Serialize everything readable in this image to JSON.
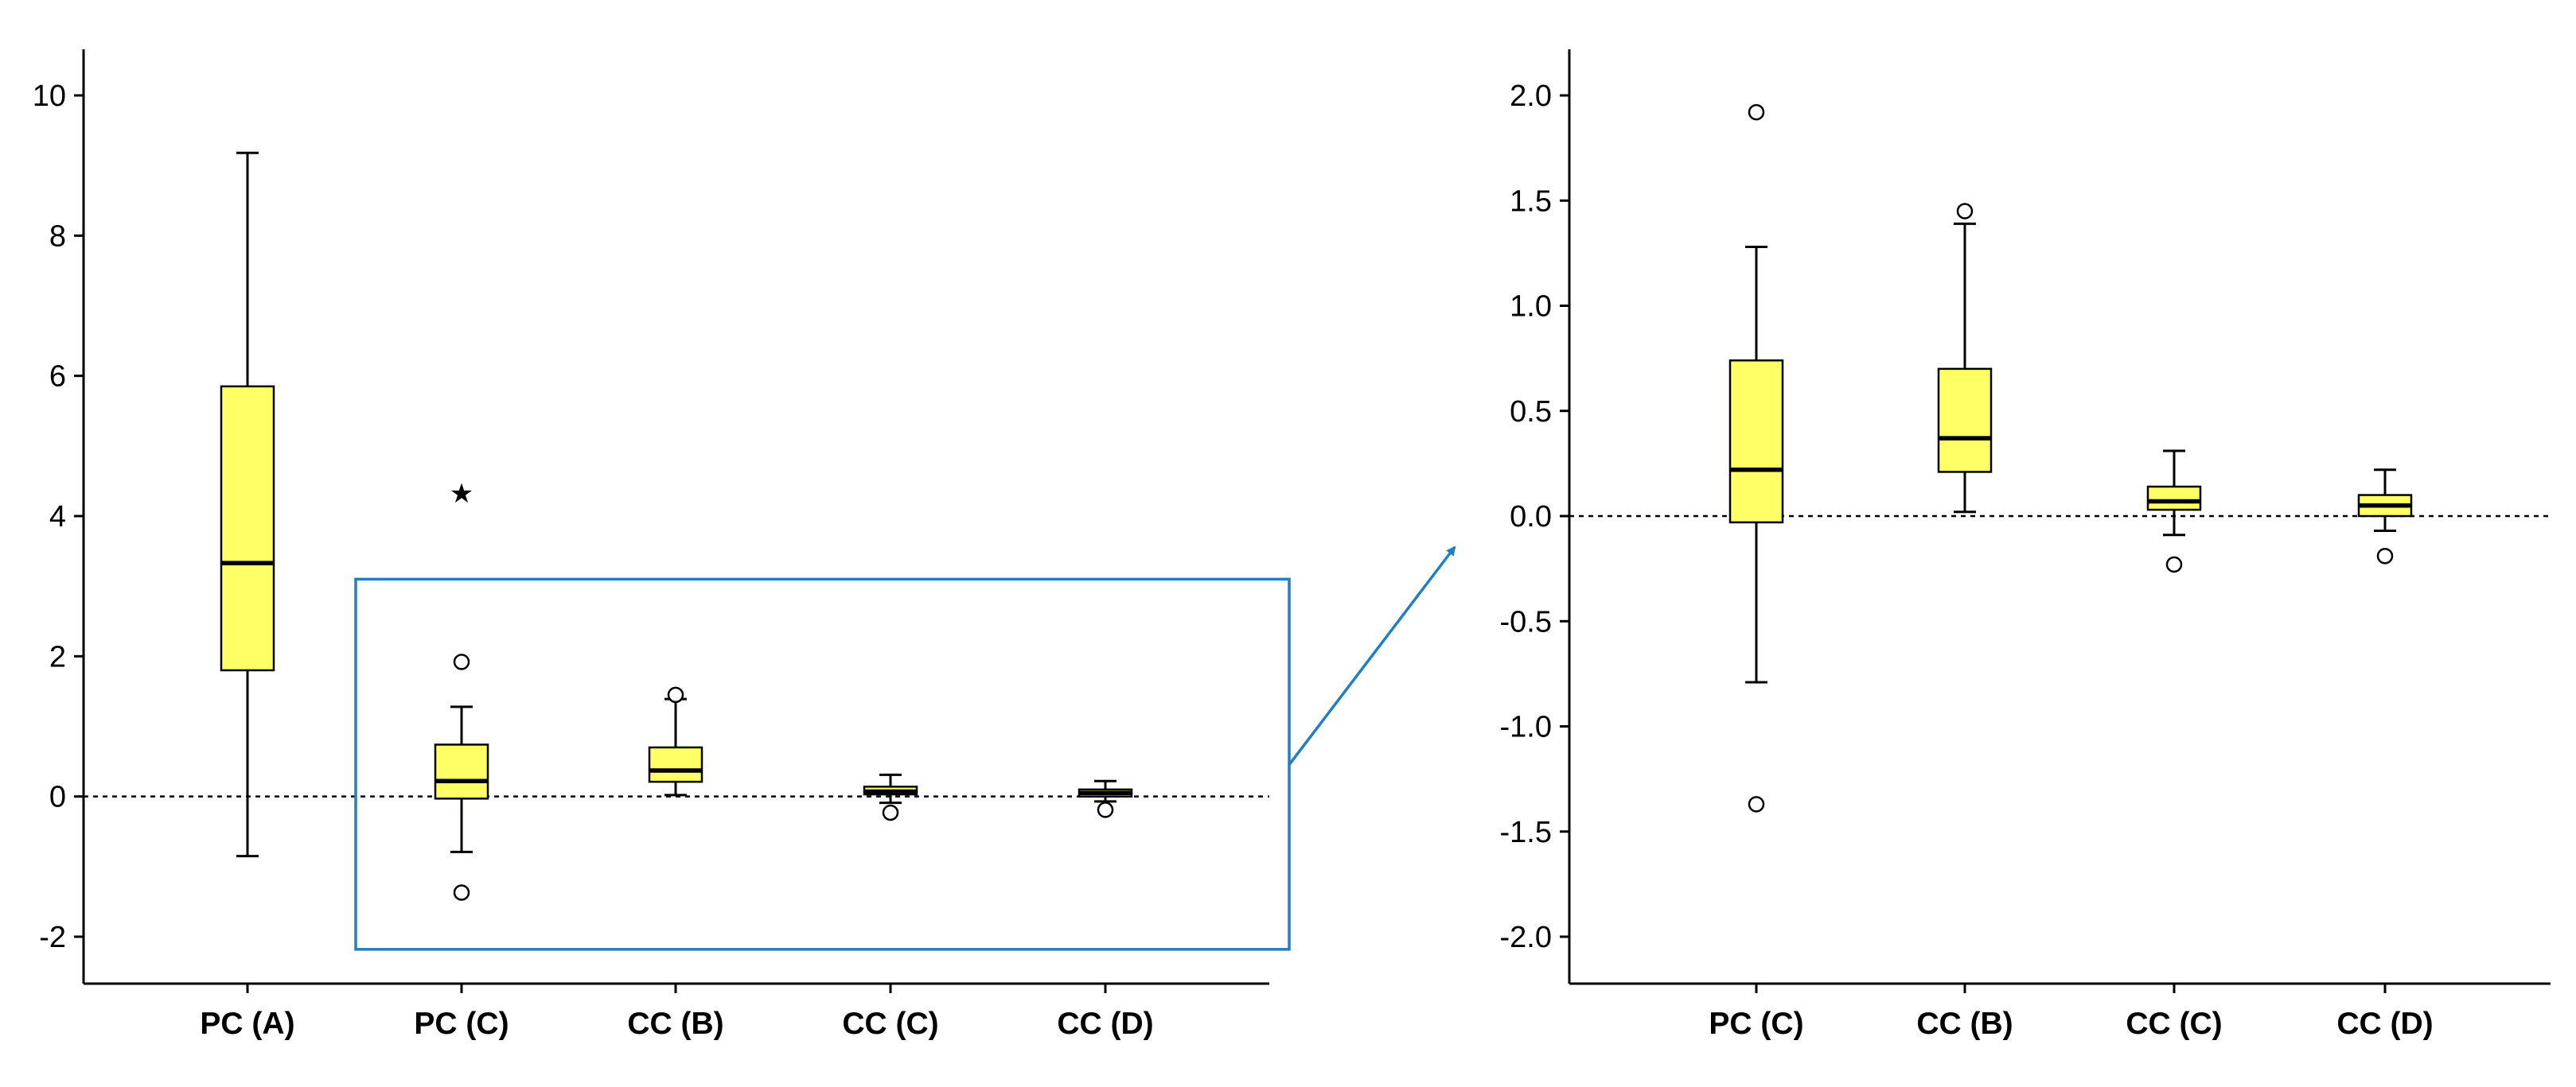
{
  "chart_data": [
    {
      "type": "boxplot",
      "title": "",
      "xlabel": "",
      "ylabel": "",
      "ylim": [
        -2.7,
        10.6
      ],
      "yticks": [
        -2,
        0,
        2,
        4,
        6,
        8,
        10
      ],
      "ytick_labels": [
        "-2",
        "0",
        "2",
        "4",
        "6",
        "8",
        "10"
      ],
      "reference_line": 0,
      "categories": [
        "PC (A)",
        "PC (C)",
        "CC (B)",
        "CC (C)",
        "CC (D)"
      ],
      "boxes": [
        {
          "category": "PC (A)",
          "whisker_low": -0.85,
          "q1": 1.8,
          "median": 3.33,
          "q3": 5.85,
          "whisker_high": 9.18,
          "outliers": [],
          "extremes": []
        },
        {
          "category": "PC (C)",
          "whisker_low": -0.79,
          "q1": -0.03,
          "median": 0.22,
          "q3": 0.74,
          "whisker_high": 1.28,
          "outliers": [
            1.92,
            -1.37
          ],
          "extremes": [
            4.35
          ]
        },
        {
          "category": "CC (B)",
          "whisker_low": 0.02,
          "q1": 0.21,
          "median": 0.37,
          "q3": 0.7,
          "whisker_high": 1.39,
          "outliers": [
            1.45
          ],
          "extremes": []
        },
        {
          "category": "CC (C)",
          "whisker_low": -0.09,
          "q1": 0.03,
          "median": 0.07,
          "q3": 0.14,
          "whisker_high": 0.31,
          "outliers": [
            -0.23
          ],
          "extremes": []
        },
        {
          "category": "CC (D)",
          "whisker_low": -0.07,
          "q1": 0.0,
          "median": 0.05,
          "q3": 0.1,
          "whisker_high": 0.22,
          "outliers": [
            -0.19
          ],
          "extremes": []
        }
      ],
      "zoom_region": {
        "y_range": [
          -2.18,
          3.1
        ],
        "categories": [
          "PC (C)",
          "CC (B)",
          "CC (C)",
          "CC (D)"
        ]
      }
    },
    {
      "type": "boxplot",
      "title": "",
      "xlabel": "",
      "ylabel": "",
      "ylim": [
        -2.2,
        2.2
      ],
      "yticks": [
        -2.0,
        -1.5,
        -1.0,
        -0.5,
        0.0,
        0.5,
        1.0,
        1.5,
        2.0
      ],
      "ytick_labels": [
        "-2.0",
        "-1.5",
        "-1.0",
        "-0.5",
        "0.0",
        "0.5",
        "1.0",
        "1.5",
        "2.0"
      ],
      "reference_line": 0,
      "categories": [
        "PC (C)",
        "CC (B)",
        "CC (C)",
        "CC (D)"
      ],
      "boxes": [
        {
          "category": "PC (C)",
          "whisker_low": -0.79,
          "q1": -0.03,
          "median": 0.22,
          "q3": 0.74,
          "whisker_high": 1.28,
          "outliers": [
            1.92,
            -1.37
          ],
          "extremes": []
        },
        {
          "category": "CC (B)",
          "whisker_low": 0.02,
          "q1": 0.21,
          "median": 0.37,
          "q3": 0.7,
          "whisker_high": 1.39,
          "outliers": [
            1.45
          ],
          "extremes": []
        },
        {
          "category": "CC (C)",
          "whisker_low": -0.09,
          "q1": 0.03,
          "median": 0.07,
          "q3": 0.14,
          "whisker_high": 0.31,
          "outliers": [
            -0.23
          ],
          "extremes": []
        },
        {
          "category": "CC (D)",
          "whisker_low": -0.07,
          "q1": 0.0,
          "median": 0.05,
          "q3": 0.1,
          "whisker_high": 0.22,
          "outliers": [
            -0.19
          ],
          "extremes": []
        }
      ]
    }
  ],
  "colors": {
    "box_fill": "#FFFF66",
    "box_stroke": "#000000",
    "zoom_frame": "#1F7EC4",
    "reference_line": "#000000"
  }
}
